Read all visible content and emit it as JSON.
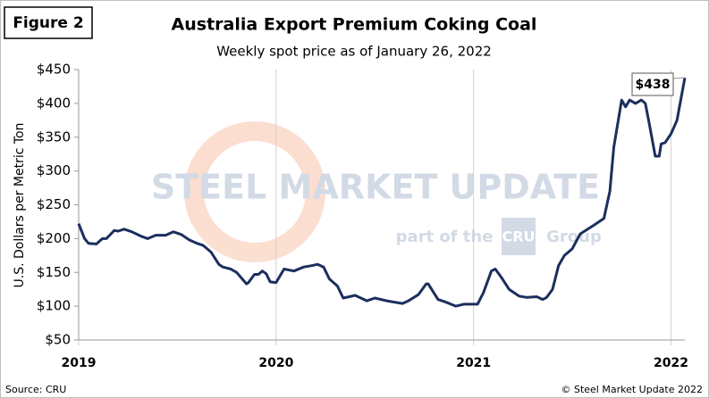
{
  "figure_label": "Figure 2",
  "source": "Source: CRU",
  "copyright": "© Steel Market Update 2022",
  "watermark": {
    "brand": "STEEL MARKET UPDATE",
    "part_of": "part of the",
    "cru": "CRU",
    "group": "Group"
  },
  "chart_data": {
    "type": "line",
    "title": "Australia Export Premium Coking Coal",
    "subtitle": "Weekly spot price as of January 26, 2022",
    "y_label": "U.S. Dollars per Metric Ton",
    "annotation": "$438",
    "color": "#1b2f5e",
    "x": [
      2019.0,
      2019.03,
      2019.05,
      2019.09,
      2019.12,
      2019.14,
      2019.18,
      2019.2,
      2019.23,
      2019.27,
      2019.32,
      2019.35,
      2019.39,
      2019.44,
      2019.48,
      2019.52,
      2019.56,
      2019.6,
      2019.63,
      2019.67,
      2019.71,
      2019.73,
      2019.77,
      2019.8,
      2019.85,
      2019.86,
      2019.89,
      2019.91,
      2019.93,
      2019.95,
      2019.97,
      2020.0,
      2020.04,
      2020.09,
      2020.14,
      2020.18,
      2020.21,
      2020.24,
      2020.27,
      2020.31,
      2020.34,
      2020.4,
      2020.46,
      2020.5,
      2020.56,
      2020.64,
      2020.67,
      2020.72,
      2020.76,
      2020.77,
      2020.82,
      2020.86,
      2020.91,
      2020.95,
      2021.02,
      2021.05,
      2021.09,
      2021.11,
      2021.14,
      2021.18,
      2021.23,
      2021.27,
      2021.32,
      2021.35,
      2021.37,
      2021.4,
      2021.43,
      2021.46,
      2021.5,
      2021.54,
      2021.61,
      2021.66,
      2021.69,
      2021.71,
      2021.75,
      2021.77,
      2021.79,
      2021.82,
      2021.85,
      2021.87,
      2021.89,
      2021.92,
      2021.94,
      2021.95,
      2021.97,
      2022.0,
      2022.03,
      2022.07
    ],
    "values": [
      222,
      200,
      193,
      192,
      200,
      200,
      212,
      211,
      214,
      210,
      203,
      200,
      205,
      205,
      210,
      206,
      198,
      193,
      190,
      180,
      162,
      158,
      155,
      150,
      133,
      135,
      147,
      147,
      152,
      148,
      136,
      135,
      155,
      152,
      158,
      160,
      162,
      158,
      140,
      130,
      112,
      116,
      108,
      112,
      108,
      104,
      108,
      117,
      133,
      133,
      110,
      106,
      100,
      103,
      103,
      120,
      152,
      155,
      143,
      125,
      115,
      113,
      114,
      110,
      113,
      125,
      160,
      175,
      185,
      207,
      220,
      230,
      270,
      335,
      405,
      395,
      405,
      400,
      405,
      400,
      370,
      322,
      322,
      340,
      342,
      355,
      375,
      438
    ],
    "xlim": [
      2019,
      2022.07
    ],
    "xticks": [
      2019,
      2020,
      2021,
      2022
    ],
    "ylim": [
      50,
      450
    ],
    "yticks": [
      {
        "value": 50,
        "label": "$50"
      },
      {
        "value": 100,
        "label": "$100"
      },
      {
        "value": 150,
        "label": "$150"
      },
      {
        "value": 200,
        "label": "$200"
      },
      {
        "value": 250,
        "label": "$250"
      },
      {
        "value": 300,
        "label": "$300"
      },
      {
        "value": 350,
        "label": "$350"
      },
      {
        "value": 400,
        "label": "$400"
      },
      {
        "value": 450,
        "label": "$450"
      }
    ]
  }
}
